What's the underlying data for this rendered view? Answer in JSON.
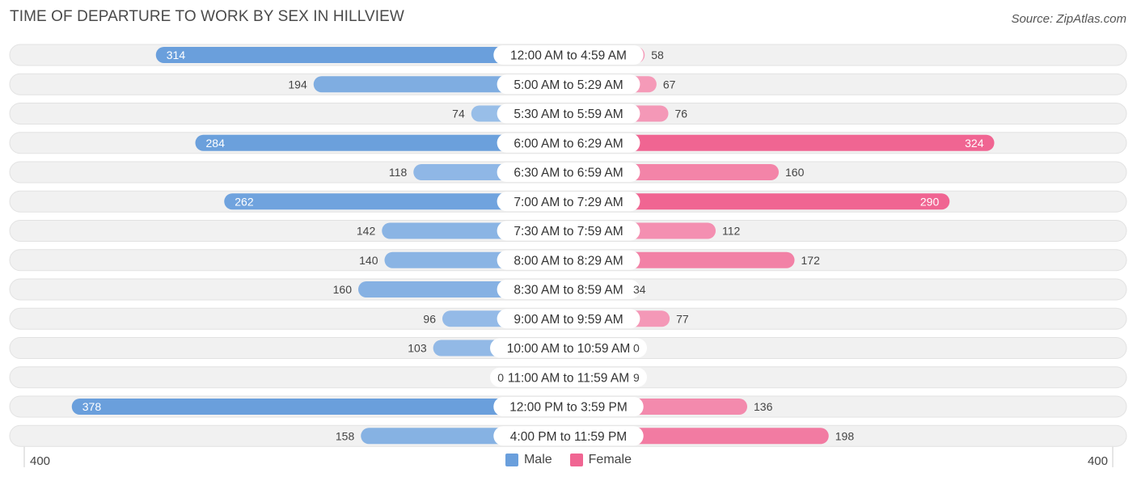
{
  "title": "TIME OF DEPARTURE TO WORK BY SEX IN HILLVIEW",
  "source": "Source: ZipAtlas.com",
  "colors": {
    "male_dark": "#6a9fdc",
    "male_light": "#a8c8ec",
    "female_dark": "#f06592",
    "female_light": "#f6aac4",
    "row_bg": "#f1f1f1"
  },
  "axis": {
    "left_label": "400",
    "right_label": "400"
  },
  "chart_data": {
    "type": "bar",
    "orientation": "horizontal-diverging",
    "categories": [
      "12:00 AM to 4:59 AM",
      "5:00 AM to 5:29 AM",
      "5:30 AM to 5:59 AM",
      "6:00 AM to 6:29 AM",
      "6:30 AM to 6:59 AM",
      "7:00 AM to 7:29 AM",
      "7:30 AM to 7:59 AM",
      "8:00 AM to 8:29 AM",
      "8:30 AM to 8:59 AM",
      "9:00 AM to 9:59 AM",
      "10:00 AM to 10:59 AM",
      "11:00 AM to 11:59 AM",
      "12:00 PM to 3:59 PM",
      "4:00 PM to 11:59 PM"
    ],
    "series": [
      {
        "name": "Male",
        "values": [
          314,
          194,
          74,
          284,
          118,
          262,
          142,
          140,
          160,
          96,
          103,
          0,
          378,
          158
        ]
      },
      {
        "name": "Female",
        "values": [
          58,
          67,
          76,
          324,
          160,
          290,
          112,
          172,
          34,
          77,
          0,
          9,
          136,
          198
        ]
      }
    ],
    "xlim": [
      -400,
      400
    ],
    "legend_position": "bottom-center"
  }
}
